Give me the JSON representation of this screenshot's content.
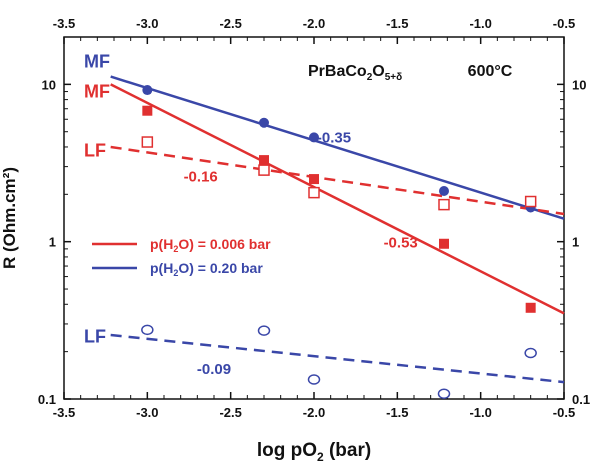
{
  "chart_data": {
    "type": "scatter",
    "title_formula": {
      "base": "PrBaCo",
      "sub1": "2",
      "mid": "O",
      "sub2": "5+δ"
    },
    "temperature": "600°C",
    "xlabel": {
      "pre": "log pO",
      "sub": "2",
      "post": " (bar)"
    },
    "ylabel": "R (Ohm.cm²)",
    "x_scale": "linear",
    "y_scale": "log",
    "xlim": [
      -3.5,
      -0.5
    ],
    "ylim": [
      0.1,
      20
    ],
    "x_ticks": [
      "-3.5",
      "-3.0",
      "-2.5",
      "-2.0",
      "-1.5",
      "-1.0",
      "-0.5"
    ],
    "y_ticks": [
      "0.1",
      "1",
      "10"
    ],
    "colors": {
      "red": "#e03030",
      "blue": "#3a47a8"
    },
    "series": [
      {
        "id": "mf_blue",
        "color": "blue",
        "marker": "filled-circle",
        "fit": "solid",
        "x": [
          -3.0,
          -2.3,
          -2.0,
          -1.22,
          -0.7
        ],
        "y": [
          9.2,
          5.7,
          4.6,
          2.1,
          1.65
        ],
        "fit_line": {
          "x": [
            -3.22,
            -0.5
          ],
          "y": [
            11.2,
            1.4
          ]
        }
      },
      {
        "id": "mf_red",
        "color": "red",
        "marker": "filled-square",
        "fit": "solid",
        "x": [
          -3.0,
          -2.3,
          -2.0,
          -1.22,
          -0.7
        ],
        "y": [
          6.8,
          3.3,
          2.5,
          0.97,
          0.38
        ],
        "fit_line": {
          "x": [
            -3.22,
            -0.5
          ],
          "y": [
            10.0,
            0.35
          ]
        }
      },
      {
        "id": "lf_red",
        "color": "red",
        "marker": "open-square",
        "fit": "dashed",
        "x": [
          -3.0,
          -2.3,
          -2.0,
          -1.22,
          -0.7
        ],
        "y": [
          4.3,
          2.85,
          2.05,
          1.72,
          1.8
        ],
        "fit_line": {
          "x": [
            -3.22,
            -0.5
          ],
          "y": [
            4.0,
            1.5
          ]
        }
      },
      {
        "id": "lf_blue",
        "color": "blue",
        "marker": "open-circle",
        "fit": "dashed",
        "x": [
          -3.0,
          -2.3,
          -2.0,
          -1.22,
          -0.7
        ],
        "y": [
          0.275,
          0.272,
          0.133,
          0.108,
          0.196
        ],
        "fit_line": {
          "x": [
            -3.22,
            -0.5
          ],
          "y": [
            0.255,
            0.128
          ]
        }
      }
    ],
    "series_labels": [
      {
        "id": "mf_blue",
        "text": "MF",
        "color": "blue",
        "x": -3.38,
        "y": 14.0
      },
      {
        "id": "mf_red",
        "text": "MF",
        "color": "red",
        "x": -3.38,
        "y": 9.0
      },
      {
        "id": "lf_red",
        "text": "LF",
        "color": "red",
        "x": -3.38,
        "y": 3.8
      },
      {
        "id": "lf_blue",
        "text": "LF",
        "color": "blue",
        "x": -3.38,
        "y": 0.25
      }
    ],
    "slope_labels": [
      {
        "text": "-0.35",
        "color": "blue",
        "x": -1.88,
        "y": 4.6
      },
      {
        "text": "-0.16",
        "color": "red",
        "x": -2.68,
        "y": 2.6
      },
      {
        "text": "-0.53",
        "color": "red",
        "x": -1.48,
        "y": 0.99
      },
      {
        "text": "-0.09",
        "color": "blue",
        "x": -2.6,
        "y": 0.155
      }
    ],
    "legend": {
      "position": "center-left",
      "entries": [
        {
          "color": "red",
          "pre": "p(H",
          "sub": "2",
          "post": "O) = 0.006 bar"
        },
        {
          "color": "blue",
          "pre": "p(H",
          "sub": "2",
          "post": "O) = 0.20 bar"
        }
      ]
    }
  }
}
